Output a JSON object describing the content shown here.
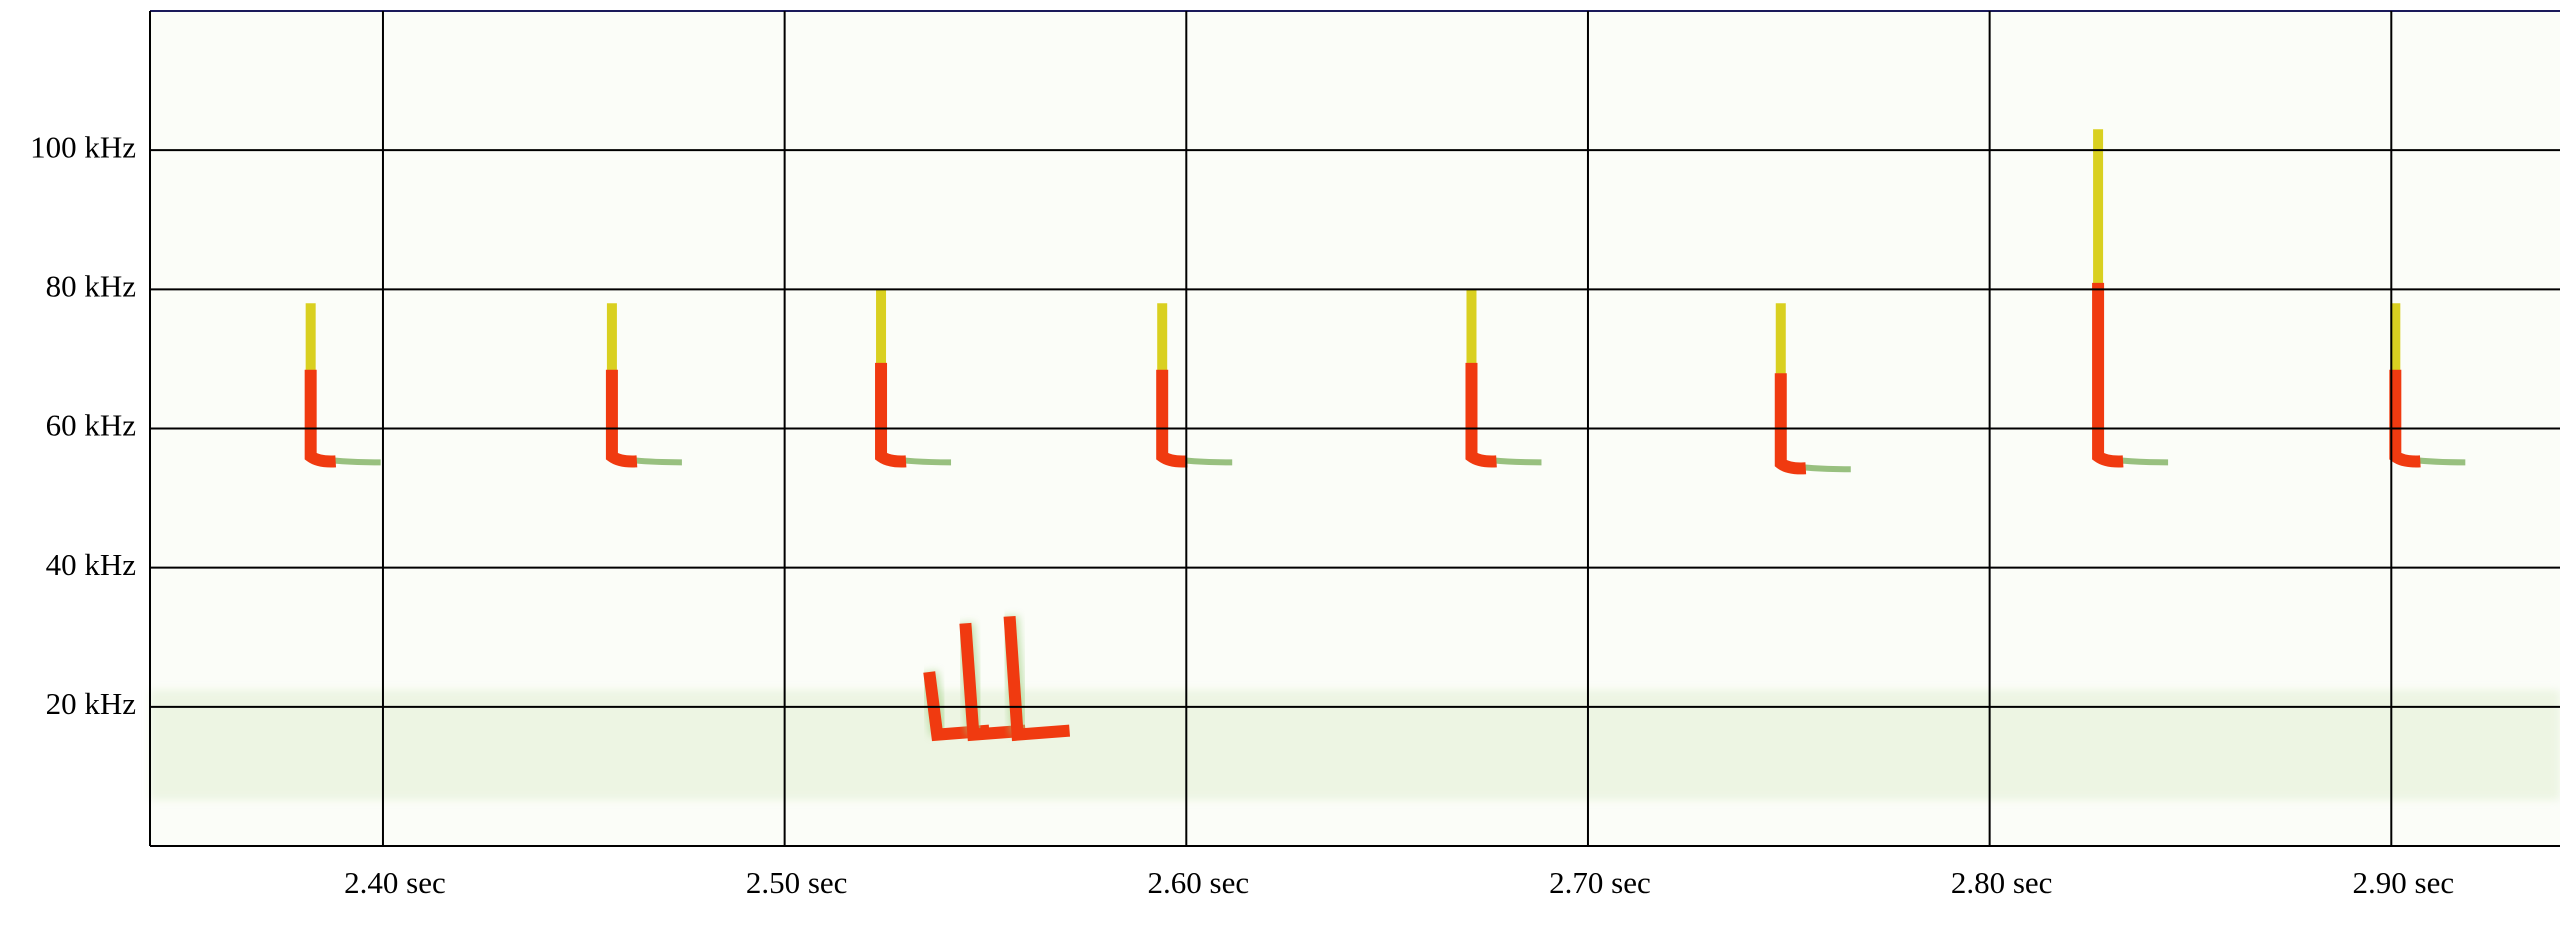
{
  "chart_data": {
    "type": "spectrogram",
    "xlim": [
      2.342,
      2.942
    ],
    "xticks": [
      {
        "value": 2.4,
        "label": "2.40 sec"
      },
      {
        "value": 2.5,
        "label": "2.50 sec"
      },
      {
        "value": 2.6,
        "label": "2.60 sec"
      },
      {
        "value": 2.7,
        "label": "2.70 sec"
      },
      {
        "value": 2.8,
        "label": "2.80 sec"
      },
      {
        "value": 2.9,
        "label": "2.90 sec"
      }
    ],
    "ylim": [
      0,
      120
    ],
    "yticks": [
      {
        "value": 20,
        "label": "20 kHz"
      },
      {
        "value": 40,
        "label": "40 kHz"
      },
      {
        "value": 60,
        "label": "60 kHz"
      },
      {
        "value": 80,
        "label": "80 kHz"
      },
      {
        "value": 100,
        "label": "100 kHz"
      }
    ],
    "grid": true,
    "color": "#f03a10",
    "x": [
      2.382,
      2.457,
      2.524,
      2.594,
      2.671,
      2.748,
      2.827,
      2.901
    ],
    "values": [
      78,
      78,
      80,
      78,
      80,
      78,
      103,
      78
    ],
    "low": [
      56,
      56,
      56,
      56,
      56,
      55,
      56,
      56
    ],
    "social_x": [
      2.536,
      2.545,
      2.556
    ],
    "social_values": [
      25,
      32,
      33
    ]
  }
}
